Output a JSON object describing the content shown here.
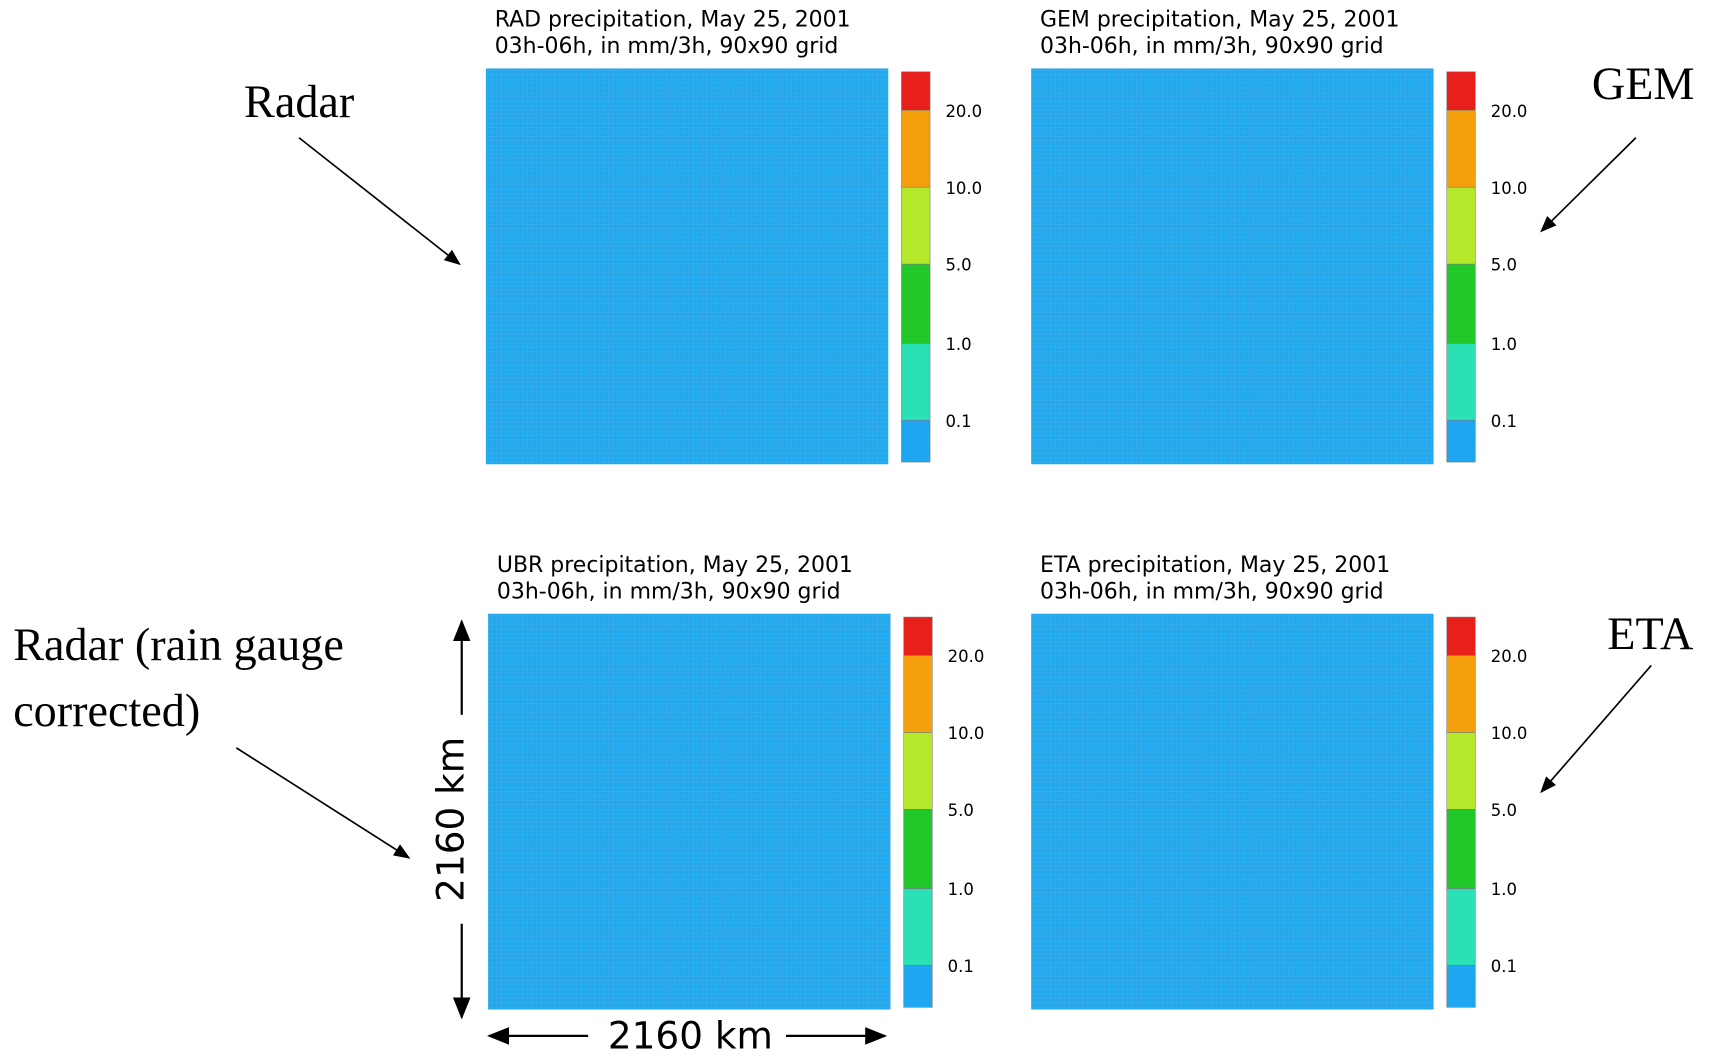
{
  "panels": [
    {
      "title": [
        "RAD precipitation,  May 25, 2001",
        "03h-06h,  in  mm/3h,  90x90 grid"
      ],
      "colorbar": [
        "20.0",
        "10.0",
        "5.0",
        "1.0",
        "0.1"
      ]
    },
    {
      "title": [
        "GEM precipitation,  May 25, 2001",
        "03h-06h,  in  mm/3h,  90x90 grid"
      ],
      "colorbar": [
        "20.0",
        "10.0",
        "5.0",
        "1.0",
        "0.1"
      ]
    },
    {
      "title": [
        "UBR precipitation,  May 25, 2001",
        "03h-06h,  in  mm/3h,  90x90 grid"
      ],
      "colorbar": [
        "20.0",
        "10.0",
        "5.0",
        "1.0",
        "0.1"
      ]
    },
    {
      "title": [
        "ETA precipitation,  May 25, 2001",
        "03h-06h,  in  mm/3h,  90x90 grid"
      ],
      "colorbar": [
        "20.0",
        "10.0",
        "5.0",
        "1.0",
        "0.1"
      ]
    }
  ],
  "annotations": {
    "radar": "Radar",
    "gem": "GEM",
    "corrected": [
      "Radar (rain gauge",
      "corrected)"
    ],
    "eta": "ETA"
  },
  "scale": {
    "vertical": "2160 km",
    "horizontal": "2160 km"
  }
}
